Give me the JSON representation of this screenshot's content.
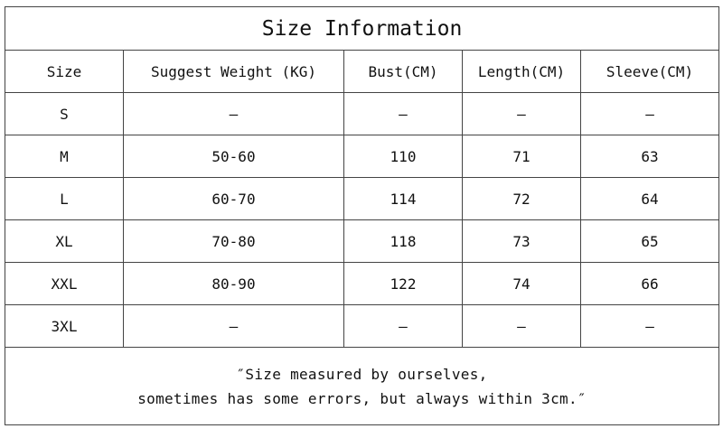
{
  "title": "Size Information",
  "columns": [
    "Size",
    "Suggest Weight (KG)",
    "Bust(CM)",
    "Length(CM)",
    "Sleeve(CM)"
  ],
  "rows": [
    [
      "S",
      "–",
      "–",
      "–",
      "–"
    ],
    [
      "M",
      "50-60",
      "110",
      "71",
      "63"
    ],
    [
      "L",
      "60-70",
      "114",
      "72",
      "64"
    ],
    [
      "XL",
      "70-80",
      "118",
      "73",
      "65"
    ],
    [
      "XXL",
      "80-90",
      "122",
      "74",
      "66"
    ],
    [
      "3XL",
      "–",
      "–",
      "–",
      "–"
    ]
  ],
  "note": {
    "line1": "″Size measured by ourselves,",
    "line2": "sometimes has some errors, but always within 3cm.″"
  }
}
